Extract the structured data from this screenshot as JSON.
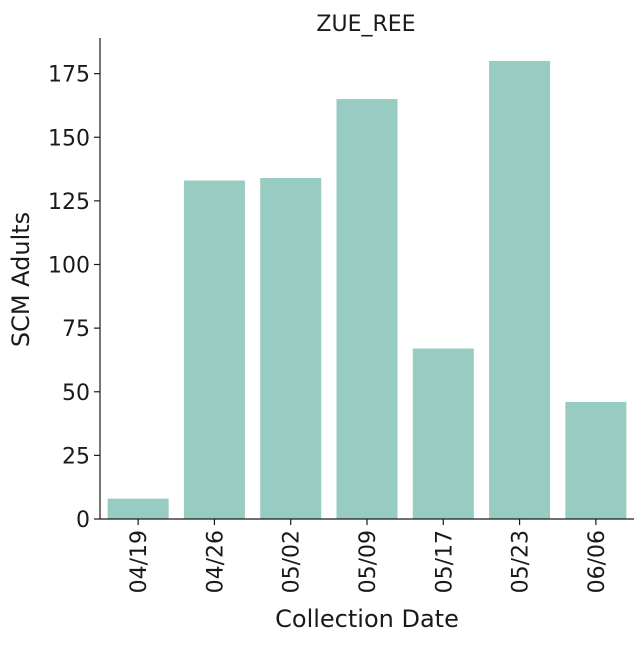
{
  "chart_data": {
    "type": "bar",
    "title": "ZUE_REE",
    "xlabel": "Collection Date",
    "ylabel": "SCM Adults",
    "categories": [
      "04/19",
      "04/26",
      "05/02",
      "05/09",
      "05/17",
      "05/23",
      "06/06"
    ],
    "values": [
      8,
      133,
      134,
      165,
      67,
      180,
      46
    ],
    "ylim": [
      0,
      189
    ],
    "yticks": [
      0,
      25,
      50,
      75,
      100,
      125,
      150,
      175
    ],
    "bar_color": "#98cbc2",
    "grid": false,
    "legend": "none"
  }
}
